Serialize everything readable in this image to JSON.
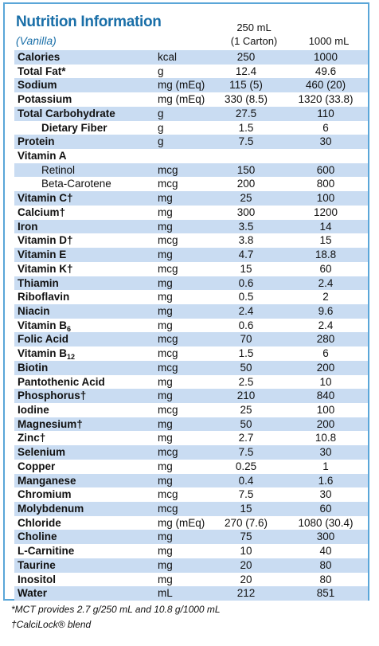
{
  "header": {
    "title": "Nutrition Information",
    "flavor": "(Vanilla)",
    "col_250_line1": "250 mL",
    "col_250_line2": "(1 Carton)",
    "col_1000": "1000 mL"
  },
  "rows": [
    {
      "name": "Calories",
      "unit": "kcal",
      "a": "250",
      "b": "1000",
      "indent": 0
    },
    {
      "name": "Total Fat*",
      "unit": "g",
      "a": "12.4",
      "b": "49.6",
      "indent": 0
    },
    {
      "name": "Sodium",
      "unit": "mg (mEq)",
      "a": "115 (5)",
      "b": "460 (20)",
      "indent": 0
    },
    {
      "name": "Potassium",
      "unit": "mg (mEq)",
      "a": "330 (8.5)",
      "b": "1320 (33.8)",
      "indent": 0
    },
    {
      "name": "Total Carbohydrate",
      "unit": "g",
      "a": "27.5",
      "b": "110",
      "indent": 0
    },
    {
      "name": "Dietary Fiber",
      "unit": "g",
      "a": "1.5",
      "b": "6",
      "indent": 1
    },
    {
      "name": "Protein",
      "unit": "g",
      "a": "7.5",
      "b": "30",
      "indent": 0
    },
    {
      "name": "Vitamin A",
      "unit": "",
      "a": "",
      "b": "",
      "indent": 0
    },
    {
      "name": "Retinol",
      "unit": "mcg",
      "a": "150",
      "b": "600",
      "indent": 2
    },
    {
      "name": "Beta-Carotene",
      "unit": "mcg",
      "a": "200",
      "b": "800",
      "indent": 2
    },
    {
      "name": "Vitamin C†",
      "unit": "mg",
      "a": "25",
      "b": "100",
      "indent": 0
    },
    {
      "name": "Calcium†",
      "unit": "mg",
      "a": "300",
      "b": "1200",
      "indent": 0
    },
    {
      "name": "Iron",
      "unit": "mg",
      "a": "3.5",
      "b": "14",
      "indent": 0
    },
    {
      "name": "Vitamin D†",
      "unit": "mcg",
      "a": "3.8",
      "b": "15",
      "indent": 0
    },
    {
      "name": "Vitamin E",
      "unit": "mg",
      "a": "4.7",
      "b": "18.8",
      "indent": 0
    },
    {
      "name": "Vitamin K†",
      "unit": "mcg",
      "a": "15",
      "b": "60",
      "indent": 0
    },
    {
      "name": "Thiamin",
      "unit": "mg",
      "a": "0.6",
      "b": "2.4",
      "indent": 0
    },
    {
      "name": "Riboflavin",
      "unit": "mg",
      "a": "0.5",
      "b": "2",
      "indent": 0
    },
    {
      "name": "Niacin",
      "unit": "mg",
      "a": "2.4",
      "b": "9.6",
      "indent": 0
    },
    {
      "name": "Vitamin B",
      "sub": "6",
      "unit": "mg",
      "a": "0.6",
      "b": "2.4",
      "indent": 0
    },
    {
      "name": "Folic Acid",
      "unit": "mcg",
      "a": "70",
      "b": "280",
      "indent": 0
    },
    {
      "name": "Vitamin B",
      "sub": "12",
      "unit": "mcg",
      "a": "1.5",
      "b": "6",
      "indent": 0
    },
    {
      "name": "Biotin",
      "unit": "mcg",
      "a": "50",
      "b": "200",
      "indent": 0
    },
    {
      "name": "Pantothenic Acid",
      "unit": "mg",
      "a": "2.5",
      "b": "10",
      "indent": 0
    },
    {
      "name": "Phosphorus†",
      "unit": "mg",
      "a": "210",
      "b": "840",
      "indent": 0
    },
    {
      "name": "Iodine",
      "unit": "mcg",
      "a": "25",
      "b": "100",
      "indent": 0
    },
    {
      "name": "Magnesium†",
      "unit": "mg",
      "a": "50",
      "b": "200",
      "indent": 0
    },
    {
      "name": "Zinc†",
      "unit": "mg",
      "a": "2.7",
      "b": "10.8",
      "indent": 0
    },
    {
      "name": "Selenium",
      "unit": "mcg",
      "a": "7.5",
      "b": "30",
      "indent": 0
    },
    {
      "name": "Copper",
      "unit": "mg",
      "a": "0.25",
      "b": "1",
      "indent": 0
    },
    {
      "name": "Manganese",
      "unit": "mg",
      "a": "0.4",
      "b": "1.6",
      "indent": 0
    },
    {
      "name": "Chromium",
      "unit": "mcg",
      "a": "7.5",
      "b": "30",
      "indent": 0
    },
    {
      "name": "Molybdenum",
      "unit": "mcg",
      "a": "15",
      "b": "60",
      "indent": 0
    },
    {
      "name": "Chloride",
      "unit": "mg (mEq)",
      "a": "270 (7.6)",
      "b": "1080 (30.4)",
      "indent": 0
    },
    {
      "name": "Choline",
      "unit": "mg",
      "a": "75",
      "b": "300",
      "indent": 0
    },
    {
      "name": "L-Carnitine",
      "unit": "mg",
      "a": "10",
      "b": "40",
      "indent": 0
    },
    {
      "name": "Taurine",
      "unit": "mg",
      "a": "20",
      "b": "80",
      "indent": 0
    },
    {
      "name": "Inositol",
      "unit": "mg",
      "a": "20",
      "b": "80",
      "indent": 0
    },
    {
      "name": "Water",
      "unit": "mL",
      "a": "212",
      "b": "851",
      "indent": 0
    }
  ],
  "footnotes": {
    "mct": "*MCT provides 2.7 g/250 mL and 10.8 g/1000 mL",
    "calcilock": "†CalciLock® blend"
  },
  "colors": {
    "accent": "#1a6fa8",
    "border": "#5aa6d8",
    "stripe": "#c9dcf2"
  }
}
